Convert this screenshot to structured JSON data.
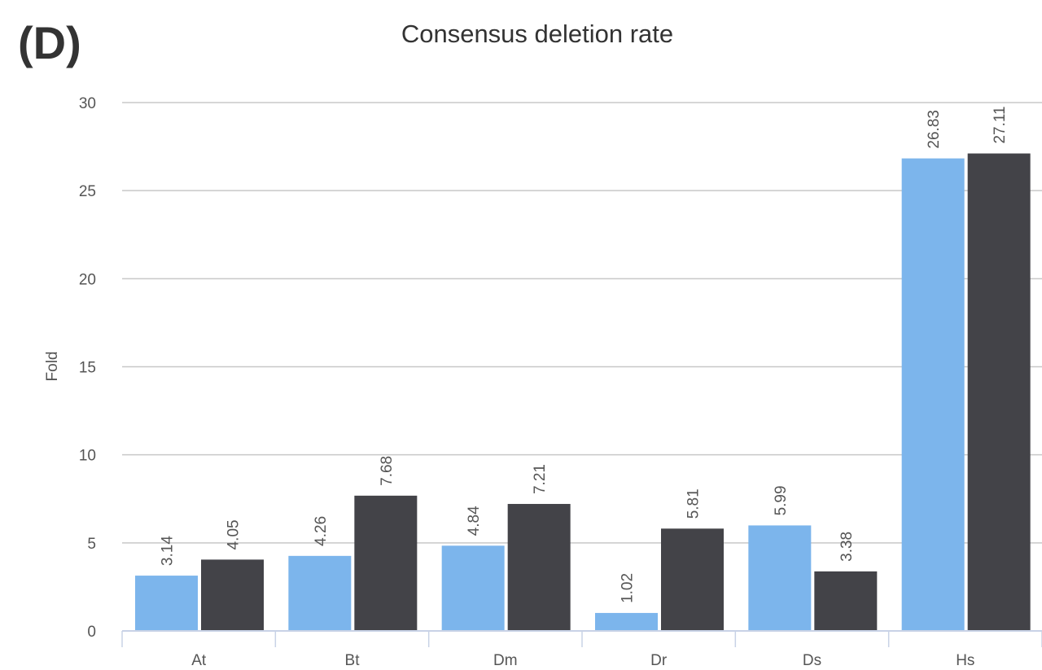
{
  "chart_data": {
    "type": "bar",
    "panel_label": "(D)",
    "title": "Consensus deletion rate",
    "y_label": "Fold",
    "categories": [
      "At",
      "Bt",
      "Dm",
      "Dr",
      "Ds",
      "Hs"
    ],
    "series": [
      {
        "color": "#7cb5ec",
        "values": [
          3.14,
          4.26,
          4.84,
          1.02,
          5.99,
          26.83
        ]
      },
      {
        "color": "#434348",
        "values": [
          4.05,
          7.68,
          7.21,
          5.81,
          3.38,
          27.11
        ]
      }
    ],
    "ylim": [
      0,
      30
    ],
    "yticks": [
      0,
      5,
      10,
      15,
      20,
      25,
      30
    ],
    "grid": true
  }
}
